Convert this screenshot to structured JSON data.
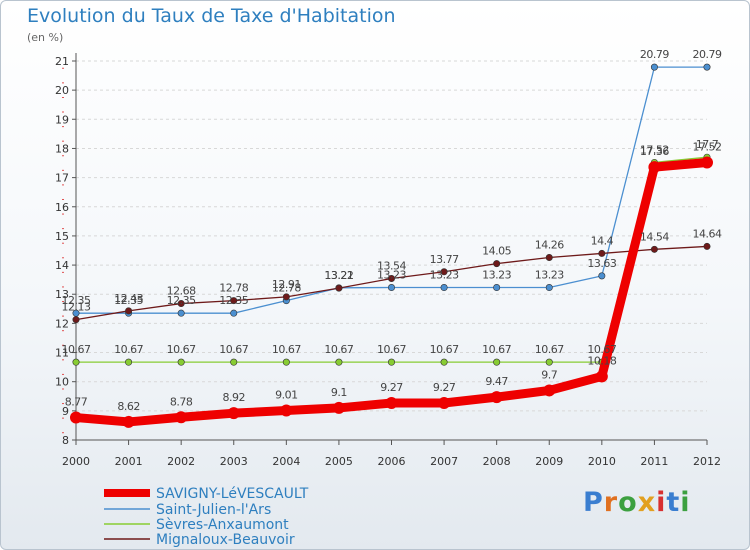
{
  "title": "Evolution du Taux de Taxe d'Habitation",
  "subtitle": "(en %)",
  "logo": "Proxiti",
  "colors": {
    "background_top": "#ffffff",
    "background_bottom": "#e3e9ef",
    "title": "#2e7fbf",
    "axis": "#555555",
    "grid": "#d8d8d8",
    "legend_text": "#2e7fbf"
  },
  "chart_data": {
    "type": "line",
    "title": "Evolution du Taux de Taxe d'Habitation",
    "ylabel": "(en %)",
    "xlabel": "",
    "x": [
      "2000",
      "2001",
      "2002",
      "2003",
      "2004",
      "2005",
      "2006",
      "2007",
      "2008",
      "2009",
      "2010",
      "2011",
      "2012"
    ],
    "ylim": [
      8,
      21
    ],
    "yticks": [
      "8",
      "9",
      "10",
      "11",
      "12",
      "13",
      "14",
      "15",
      "16",
      "17",
      "18",
      "19",
      "20",
      "21"
    ],
    "grid": "horizontal dashed",
    "legend_position": "bottom-left",
    "series": [
      {
        "name": "SAVIGNY-LéVESCAULT",
        "color": "#ee0000",
        "values": [
          8.77,
          8.62,
          8.78,
          8.92,
          9.01,
          9.1,
          9.27,
          9.27,
          9.47,
          9.7,
          10.18,
          17.36,
          17.52
        ],
        "labels": [
          "8.77",
          "8.62",
          "8.78",
          "8.92",
          "9.01",
          "9.1",
          "9.27",
          "9.27",
          "9.47",
          "9.7",
          "10.18",
          "17.36",
          "17.52"
        ]
      },
      {
        "name": "Saint-Julien-l'Ars",
        "color": "#4b8fd0",
        "values": [
          12.35,
          12.35,
          12.35,
          12.35,
          12.78,
          13.22,
          13.23,
          13.23,
          13.23,
          13.23,
          13.63,
          20.79,
          20.79
        ],
        "labels": [
          "12.35",
          "12.35",
          "12.35",
          "12.35",
          "12.78",
          "13.22",
          "13.23",
          "13.23",
          "13.23",
          "13.23",
          "13.63",
          "20.79",
          "20.79"
        ]
      },
      {
        "name": "Sèvres-Anxaumont",
        "color": "#88cc33",
        "values": [
          10.67,
          10.67,
          10.67,
          10.67,
          10.67,
          10.67,
          10.67,
          10.67,
          10.67,
          10.67,
          10.67,
          17.52,
          17.7
        ],
        "labels": [
          "10.67",
          "10.67",
          "10.67",
          "10.67",
          "10.67",
          "10.67",
          "10.67",
          "10.67",
          "10.67",
          "10.67",
          "10.67",
          "17.52",
          "17.7"
        ]
      },
      {
        "name": "Mignaloux-Beauvoir",
        "color": "#6e1a1a",
        "values": [
          12.13,
          12.43,
          12.68,
          12.78,
          12.91,
          13.21,
          13.54,
          13.77,
          14.05,
          14.26,
          14.4,
          14.54,
          14.64
        ],
        "labels": [
          "12.13",
          "12.43",
          "12.68",
          "12.78",
          "12.91",
          "13.21",
          "13.54",
          "13.77",
          "14.05",
          "14.26",
          "14.4",
          "14.54",
          "14.64"
        ]
      }
    ]
  }
}
